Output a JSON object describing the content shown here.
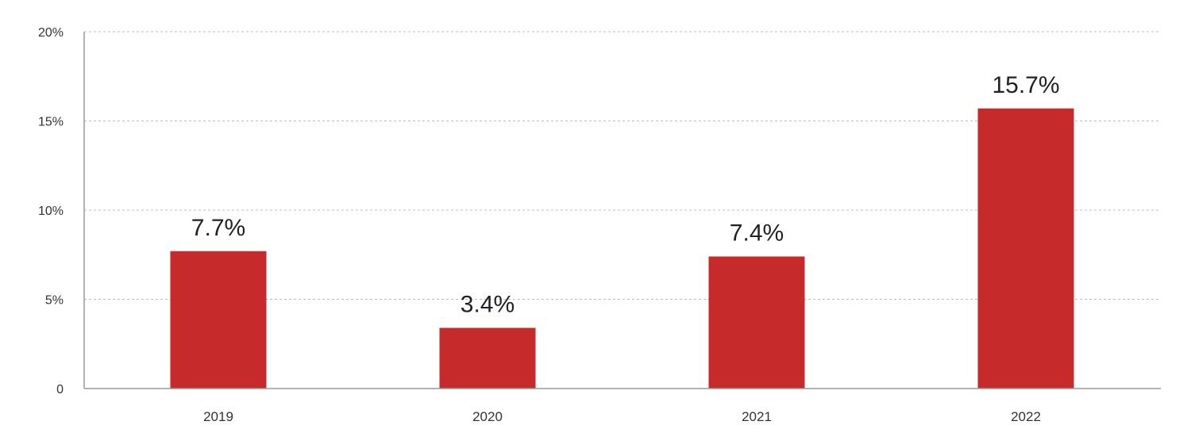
{
  "chart_data": {
    "type": "bar",
    "title": "",
    "xlabel": "",
    "ylabel": "",
    "categories": [
      "2019",
      "2020",
      "2021",
      "2022"
    ],
    "values": [
      7.7,
      3.4,
      7.4,
      15.7
    ],
    "value_labels": [
      "7.7%",
      "3.4%",
      "7.4%",
      "15.7%"
    ],
    "ylim": [
      0,
      20
    ],
    "yticks": [
      0,
      5,
      10,
      15,
      20
    ],
    "ytick_labels": [
      "0",
      "5%",
      "10%",
      "15%",
      "20%"
    ],
    "grid": true,
    "legend": "none",
    "bar_color": "#c62a2a"
  }
}
